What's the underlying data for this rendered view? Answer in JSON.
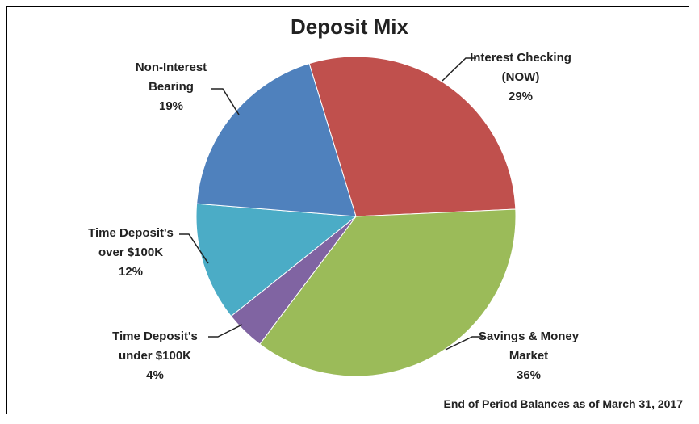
{
  "chart_data": {
    "type": "pie",
    "title": "Deposit Mix",
    "categories": [
      "Interest Checking (NOW)",
      "Savings & Money Market",
      "Time Deposit's under $100K",
      "Time Deposit's over $100K",
      "Non-Interest Bearing"
    ],
    "values": [
      29,
      36,
      4,
      12,
      19
    ],
    "value_labels": [
      "29%",
      "36%",
      "4%",
      "12%",
      "19%"
    ],
    "colors": [
      "#c0504d",
      "#9bbb59",
      "#8064a2",
      "#4bacc6",
      "#4f81bd"
    ],
    "caption": "End of Period Balances as of March 31, 2017"
  }
}
